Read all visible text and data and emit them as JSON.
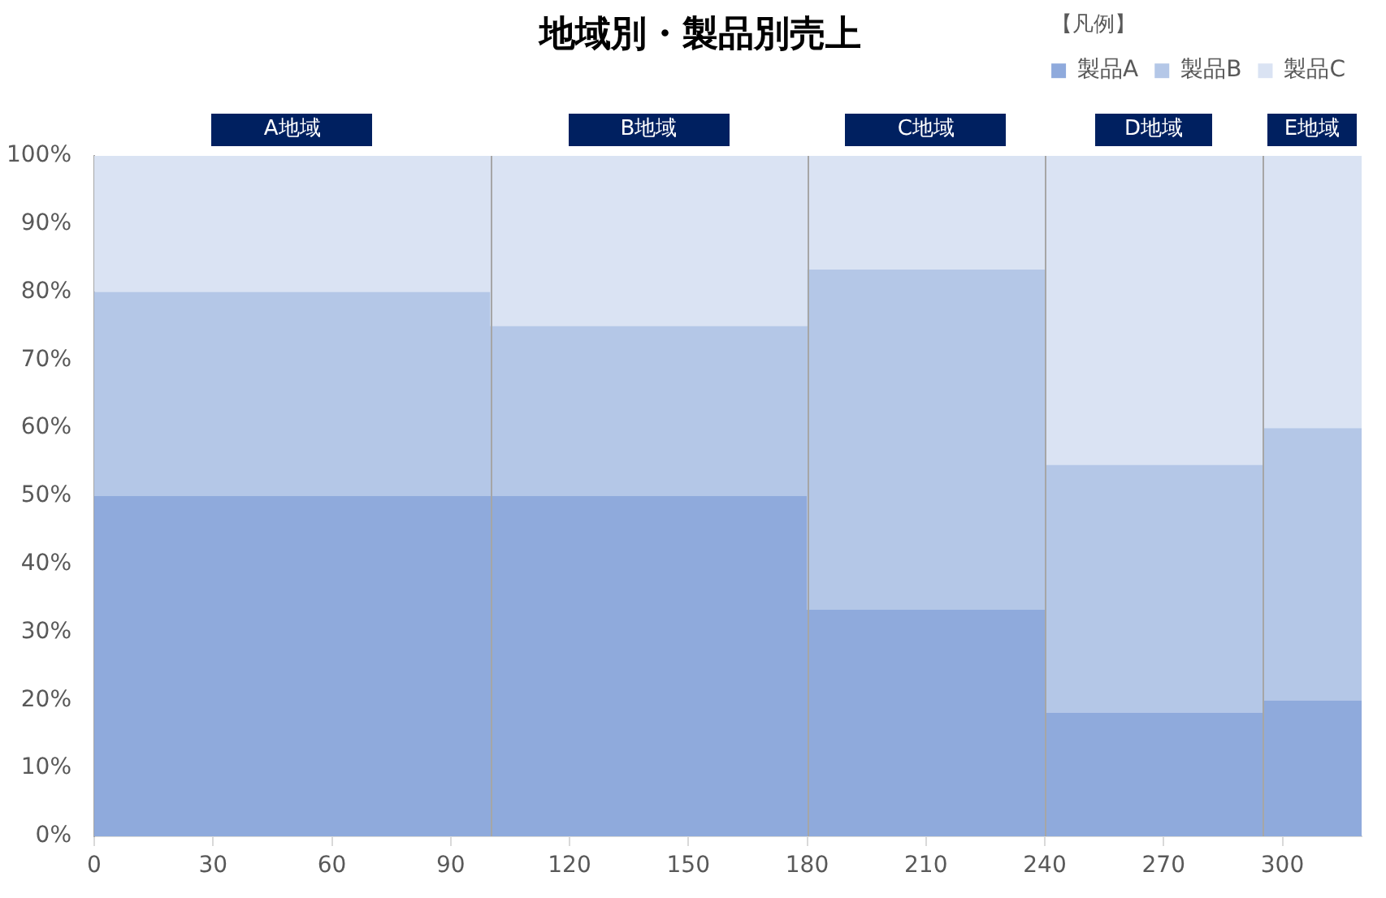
{
  "chart_data": {
    "type": "area",
    "title": "地域別・製品別売上",
    "legend_title": "【凡例】",
    "legend": "top right",
    "stacked": true,
    "x": [
      0,
      100,
      100,
      180,
      180,
      240,
      240,
      295,
      295,
      320
    ],
    "series": [
      {
        "name": "製品A",
        "color": "#8faadc",
        "values": [
          50,
          50,
          50,
          50,
          33.3,
          33.3,
          18.2,
          18.2,
          20,
          20
        ]
      },
      {
        "name": "製品B",
        "color": "#b4c7e7",
        "values": [
          30,
          30,
          25,
          25,
          50,
          50,
          36.4,
          36.4,
          40,
          40
        ]
      },
      {
        "name": "製品C",
        "color": "#dae3f3",
        "values": [
          20,
          20,
          25,
          25,
          16.7,
          16.7,
          45.4,
          45.4,
          40,
          40
        ]
      }
    ],
    "xlim": [
      0,
      320
    ],
    "xticks": [
      0,
      30,
      60,
      90,
      120,
      150,
      180,
      210,
      240,
      270,
      300
    ],
    "ylim": [
      0,
      100
    ],
    "yticks": [
      {
        "value": 0,
        "label": "0%"
      },
      {
        "value": 10,
        "label": "10%"
      },
      {
        "value": 20,
        "label": "20%"
      },
      {
        "value": 30,
        "label": "30%"
      },
      {
        "value": 40,
        "label": "40%"
      },
      {
        "value": 50,
        "label": "50%"
      },
      {
        "value": 60,
        "label": "60%"
      },
      {
        "value": 70,
        "label": "70%"
      },
      {
        "value": 80,
        "label": "80%"
      },
      {
        "value": 90,
        "label": "90%"
      },
      {
        "value": 100,
        "label": "100%"
      }
    ],
    "annotations": [
      {
        "text": "A地域",
        "x": 50,
        "y": 100
      },
      {
        "text": "B地域",
        "x": 140,
        "y": 100
      },
      {
        "text": "C地域",
        "x": 210,
        "y": 100
      },
      {
        "text": "D地域",
        "x": 267.5,
        "y": 100
      },
      {
        "text": "E地域",
        "x": 307.5,
        "y": 100
      }
    ],
    "ref_lines": [
      {
        "axis": "x",
        "value": 100,
        "color": "#a6a6a6"
      },
      {
        "axis": "x",
        "value": 180,
        "color": "#a6a6a6"
      },
      {
        "axis": "x",
        "value": 240,
        "color": "#a6a6a6"
      },
      {
        "axis": "x",
        "value": 295,
        "color": "#a6a6a6"
      }
    ]
  }
}
